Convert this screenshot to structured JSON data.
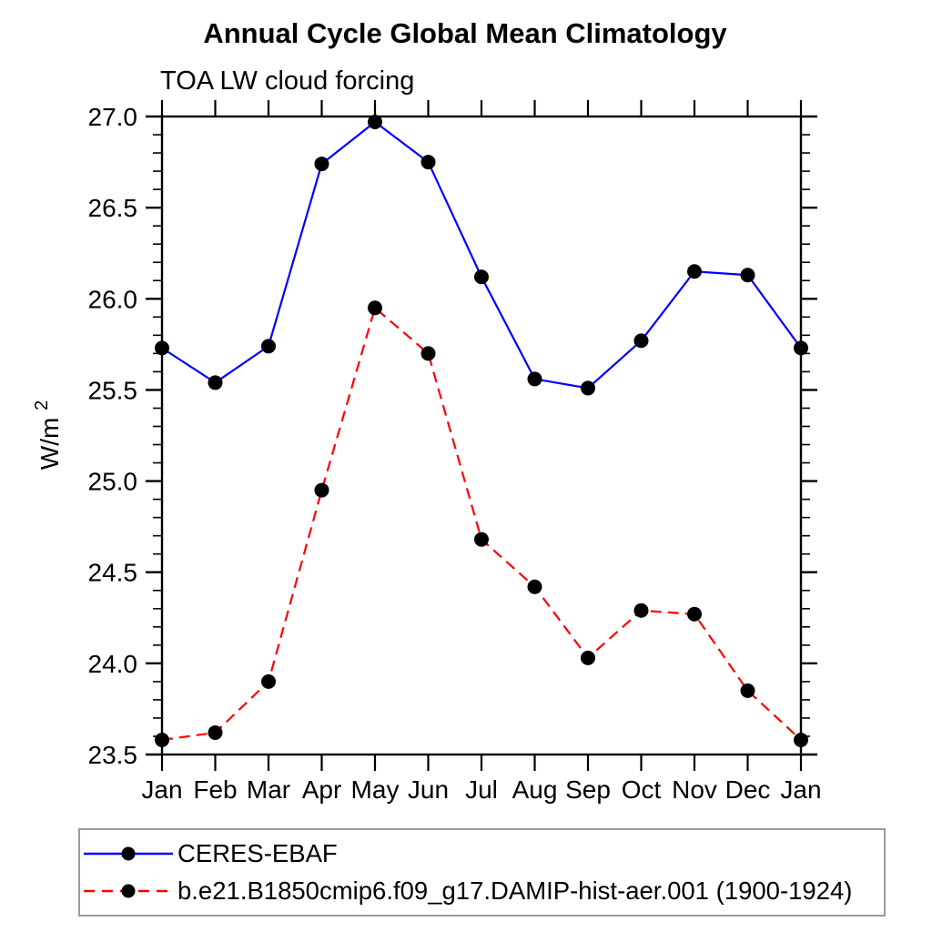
{
  "chart_data": {
    "type": "line",
    "title": "Annual Cycle Global Mean Climatology",
    "subtitle": "TOA LW cloud forcing",
    "ylabel": "W/m²",
    "ylabel_base": "W/m",
    "ylabel_exp": "2",
    "categories": [
      "Jan",
      "Feb",
      "Mar",
      "Apr",
      "May",
      "Jun",
      "Jul",
      "Aug",
      "Sep",
      "Oct",
      "Nov",
      "Dec",
      "Jan"
    ],
    "ylim": [
      23.5,
      27.0
    ],
    "ytick_major_step": 0.5,
    "ytick_minor_step": 0.1,
    "grid": false,
    "legend_position": "bottom-left-box",
    "axis_color": "#000000",
    "marker": {
      "shape": "circle",
      "color": "#000000"
    },
    "series": [
      {
        "name": "CERES-EBAF",
        "color": "#0000ff",
        "line_style": "solid",
        "values": [
          25.73,
          25.54,
          25.74,
          26.74,
          26.97,
          26.75,
          26.12,
          25.56,
          25.51,
          25.77,
          26.15,
          26.13,
          25.73
        ]
      },
      {
        "name": "b.e21.B1850cmip6.f09_g17.DAMIP-hist-aer.001 (1900-1924)",
        "color": "#ff0000",
        "line_style": "dashed",
        "values": [
          23.58,
          23.62,
          23.9,
          24.95,
          25.95,
          25.7,
          24.68,
          24.42,
          24.03,
          24.29,
          24.27,
          23.85,
          23.58
        ]
      }
    ]
  }
}
